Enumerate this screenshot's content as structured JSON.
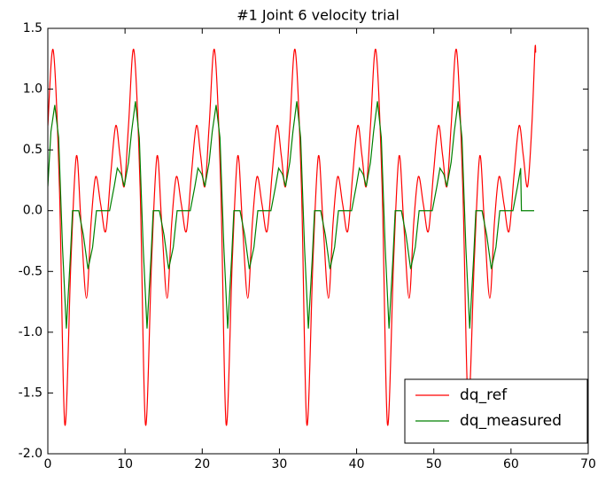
{
  "chart_data": {
    "type": "line",
    "title": "#1 Joint 6 velocity trial",
    "xlim": [
      0,
      70
    ],
    "xticks": [
      0,
      10,
      20,
      30,
      40,
      50,
      60,
      70
    ],
    "ylim": [
      -2.0,
      1.5
    ],
    "yticks": [
      {
        "value": -2.0,
        "label": "-2.0"
      },
      -1.5,
      {
        "value": -1.0,
        "label": "-1.0"
      },
      -0.5,
      {
        "value": 0.0,
        "label": "0.0"
      },
      0.5,
      {
        "value": 1.0,
        "label": "1.0"
      },
      1.5
    ],
    "legend": "lower right",
    "series": [
      {
        "name": "dq_ref",
        "color": "#ff0000",
        "smooth": true,
        "x": [
          0,
          0.7,
          1.5,
          2.2,
          3.0,
          3.7,
          4.3,
          5.0,
          5.6,
          6.2,
          6.85,
          7.5,
          8.15,
          8.8,
          9.35,
          9.9,
          10.45,
          11.15,
          11.95,
          12.65,
          13.45,
          14.15,
          14.75,
          15.45,
          16.05,
          16.65,
          17.3,
          17.95,
          18.6,
          19.25,
          19.8,
          20.35,
          20.9,
          21.6,
          22.4,
          23.1,
          23.9,
          24.6,
          25.2,
          25.9,
          26.5,
          27.1,
          27.75,
          28.4,
          29.05,
          29.7,
          30.25,
          30.8,
          31.35,
          32.05,
          32.85,
          33.55,
          34.35,
          35.05,
          35.65,
          36.35,
          36.95,
          37.55,
          38.2,
          38.85,
          39.5,
          40.15,
          40.7,
          41.25,
          41.8,
          42.5,
          43.3,
          44.0,
          44.8,
          45.5,
          46.1,
          46.8,
          47.4,
          48.0,
          48.65,
          49.3,
          49.95,
          50.6,
          51.15,
          51.7,
          52.25,
          52.95,
          53.75,
          54.45,
          55.25,
          55.95,
          56.55,
          57.25,
          57.85,
          58.45,
          59.1,
          59.75,
          60.4,
          61.05,
          61.6,
          62.15,
          62.7,
          63.1,
          63.2
        ],
        "values": [
          0.7,
          1.32,
          0.2,
          -1.76,
          -0.4,
          0.45,
          -0.1,
          -0.72,
          -0.1,
          0.28,
          0.05,
          -0.17,
          0.3,
          0.7,
          0.45,
          0.2,
          0.7,
          1.32,
          0.2,
          -1.76,
          -0.4,
          0.45,
          -0.1,
          -0.72,
          -0.1,
          0.28,
          0.05,
          -0.17,
          0.3,
          0.7,
          0.45,
          0.2,
          0.7,
          1.32,
          0.2,
          -1.76,
          -0.4,
          0.45,
          -0.1,
          -0.72,
          -0.1,
          0.28,
          0.05,
          -0.17,
          0.3,
          0.7,
          0.45,
          0.2,
          0.7,
          1.32,
          0.2,
          -1.76,
          -0.4,
          0.45,
          -0.1,
          -0.72,
          -0.1,
          0.28,
          0.05,
          -0.17,
          0.3,
          0.7,
          0.45,
          0.2,
          0.7,
          1.32,
          0.2,
          -1.76,
          -0.4,
          0.45,
          -0.1,
          -0.72,
          -0.1,
          0.28,
          0.05,
          -0.17,
          0.3,
          0.7,
          0.45,
          0.2,
          0.7,
          1.32,
          0.2,
          -1.6,
          -0.4,
          0.45,
          -0.1,
          -0.72,
          -0.1,
          0.28,
          0.05,
          -0.17,
          0.3,
          0.7,
          0.45,
          0.2,
          0.7,
          1.32,
          1.3
        ]
      },
      {
        "name": "dq_measured",
        "color": "#008000",
        "smooth": false,
        "x": [
          0,
          0.4,
          0.9,
          1.4,
          1.9,
          2.4,
          2.9,
          3.2,
          4.0,
          4.6,
          5.2,
          5.8,
          6.3,
          8.0,
          8.6,
          9.0,
          9.5,
          9.9,
          10.45,
          10.85,
          11.35,
          11.85,
          12.35,
          12.85,
          13.35,
          13.65,
          14.45,
          15.05,
          15.65,
          16.25,
          16.75,
          18.45,
          19.05,
          19.45,
          19.95,
          20.35,
          20.9,
          21.3,
          21.8,
          22.3,
          22.8,
          23.3,
          23.8,
          24.1,
          24.9,
          25.5,
          26.1,
          26.7,
          27.2,
          28.9,
          29.5,
          29.9,
          30.4,
          30.8,
          31.35,
          31.75,
          32.25,
          32.75,
          33.25,
          33.75,
          34.25,
          34.55,
          35.35,
          35.95,
          36.55,
          37.15,
          37.65,
          39.35,
          39.95,
          40.35,
          40.85,
          41.25,
          41.8,
          42.2,
          42.7,
          43.2,
          43.7,
          44.2,
          44.7,
          45.0,
          45.8,
          46.4,
          47.0,
          47.6,
          48.1,
          49.8,
          50.4,
          50.8,
          51.3,
          51.7,
          52.25,
          52.65,
          53.15,
          53.65,
          54.15,
          54.65,
          55.15,
          55.45,
          56.25,
          56.85,
          57.45,
          58.05,
          58.55,
          60.25,
          60.85,
          61.25,
          61.35,
          63.0
        ],
        "values": [
          0.2,
          0.65,
          0.87,
          0.6,
          -0.3,
          -0.97,
          -0.4,
          0,
          0,
          -0.2,
          -0.48,
          -0.3,
          0,
          0,
          0.2,
          0.35,
          0.3,
          0.2,
          0.4,
          0.65,
          0.9,
          0.6,
          -0.3,
          -0.97,
          -0.4,
          0,
          0,
          -0.2,
          -0.48,
          -0.3,
          0,
          0,
          0.2,
          0.35,
          0.3,
          0.2,
          0.4,
          0.65,
          0.87,
          0.6,
          -0.3,
          -0.97,
          -0.4,
          0,
          0,
          -0.2,
          -0.48,
          -0.3,
          0,
          0,
          0.2,
          0.35,
          0.3,
          0.2,
          0.4,
          0.65,
          0.9,
          0.6,
          -0.3,
          -0.97,
          -0.4,
          0,
          0,
          -0.2,
          -0.48,
          -0.3,
          0,
          0,
          0.2,
          0.35,
          0.3,
          0.2,
          0.4,
          0.65,
          0.9,
          0.6,
          -0.3,
          -0.97,
          -0.4,
          0,
          0,
          -0.2,
          -0.48,
          -0.3,
          0,
          0,
          0.2,
          0.35,
          0.3,
          0.2,
          0.4,
          0.65,
          0.9,
          0.6,
          -0.3,
          -0.97,
          -0.4,
          0,
          0,
          -0.2,
          -0.48,
          -0.3,
          0,
          0,
          0.2,
          0.35,
          0,
          0
        ]
      }
    ]
  }
}
